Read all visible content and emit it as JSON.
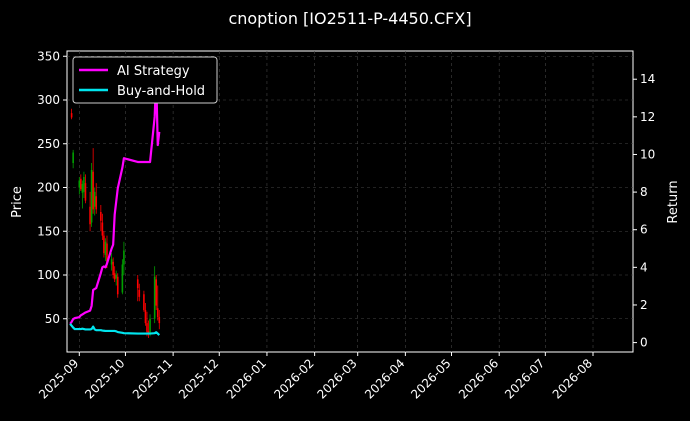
{
  "chart_data": {
    "type": "line",
    "title": "cnoption [IO2511-P-4450.CFX]",
    "xlabel": "",
    "ylabel_left": "Price",
    "ylabel_right": "Return",
    "x_range": [
      "2025-08-24",
      "2026-08-27"
    ],
    "x_ticks": [
      "2025-09",
      "2025-10",
      "2025-11",
      "2025-12",
      "2026-01",
      "2026-02",
      "2026-03",
      "2026-04",
      "2026-05",
      "2026-06",
      "2026-07",
      "2026-08"
    ],
    "y_left_range": [
      12,
      356
    ],
    "y_left_ticks": [
      50,
      100,
      150,
      200,
      250,
      300,
      350
    ],
    "y_right_range": [
      -0.5,
      15.5
    ],
    "y_right_ticks": [
      0,
      2,
      4,
      6,
      8,
      10,
      12,
      14
    ],
    "grid": true,
    "legend_position": "top-left",
    "colors": {
      "background": "#000000",
      "up": "#00a000",
      "down": "#ff0000",
      "strategy": "#ff00ff",
      "buyhold": "#00e5ee",
      "grid": "#444444"
    },
    "candles": [
      {
        "x": "2025-08-27",
        "open": 285,
        "high": 290,
        "low": 278,
        "close": 280
      },
      {
        "x": "2025-08-28",
        "open": 228,
        "high": 243,
        "low": 222,
        "close": 240
      },
      {
        "x": "2025-09-01",
        "open": 200,
        "high": 212,
        "low": 192,
        "close": 208
      },
      {
        "x": "2025-09-02",
        "open": 210,
        "high": 215,
        "low": 196,
        "close": 198
      },
      {
        "x": "2025-09-03",
        "open": 194,
        "high": 208,
        "low": 176,
        "close": 204
      },
      {
        "x": "2025-09-04",
        "open": 195,
        "high": 218,
        "low": 188,
        "close": 212
      },
      {
        "x": "2025-09-05",
        "open": 205,
        "high": 215,
        "low": 182,
        "close": 185
      },
      {
        "x": "2025-09-08",
        "open": 178,
        "high": 195,
        "low": 150,
        "close": 158
      },
      {
        "x": "2025-09-09",
        "open": 160,
        "high": 228,
        "low": 155,
        "close": 220
      },
      {
        "x": "2025-09-10",
        "open": 218,
        "high": 245,
        "low": 170,
        "close": 175
      },
      {
        "x": "2025-09-11",
        "open": 178,
        "high": 200,
        "low": 168,
        "close": 195
      },
      {
        "x": "2025-09-12",
        "open": 190,
        "high": 205,
        "low": 170,
        "close": 175
      },
      {
        "x": "2025-09-15",
        "open": 172,
        "high": 180,
        "low": 150,
        "close": 162
      },
      {
        "x": "2025-09-16",
        "open": 160,
        "high": 170,
        "low": 140,
        "close": 145
      },
      {
        "x": "2025-09-17",
        "open": 145,
        "high": 150,
        "low": 120,
        "close": 125
      },
      {
        "x": "2025-09-18",
        "open": 123,
        "high": 142,
        "low": 116,
        "close": 138
      },
      {
        "x": "2025-09-19",
        "open": 136,
        "high": 145,
        "low": 108,
        "close": 112
      },
      {
        "x": "2025-09-22",
        "open": 112,
        "high": 125,
        "low": 105,
        "close": 118
      },
      {
        "x": "2025-09-23",
        "open": 115,
        "high": 120,
        "low": 96,
        "close": 100
      },
      {
        "x": "2025-09-24",
        "open": 102,
        "high": 110,
        "low": 92,
        "close": 95
      },
      {
        "x": "2025-09-25",
        "open": 96,
        "high": 105,
        "low": 88,
        "close": 100
      },
      {
        "x": "2025-09-26",
        "open": 98,
        "high": 102,
        "low": 74,
        "close": 78
      },
      {
        "x": "2025-09-29",
        "open": 80,
        "high": 118,
        "low": 78,
        "close": 112
      },
      {
        "x": "2025-09-30",
        "open": 112,
        "high": 138,
        "low": 100,
        "close": 128
      },
      {
        "x": "2025-10-09",
        "open": 95,
        "high": 100,
        "low": 70,
        "close": 85
      },
      {
        "x": "2025-10-10",
        "open": 83,
        "high": 90,
        "low": 70,
        "close": 75
      },
      {
        "x": "2025-10-13",
        "open": 78,
        "high": 82,
        "low": 58,
        "close": 60
      },
      {
        "x": "2025-10-14",
        "open": 60,
        "high": 68,
        "low": 42,
        "close": 45
      },
      {
        "x": "2025-10-15",
        "open": 45,
        "high": 58,
        "low": 30,
        "close": 35
      },
      {
        "x": "2025-10-16",
        "open": 36,
        "high": 48,
        "low": 28,
        "close": 32
      },
      {
        "x": "2025-10-17",
        "open": 32,
        "high": 55,
        "low": 30,
        "close": 50
      },
      {
        "x": "2025-10-20",
        "open": 50,
        "high": 110,
        "low": 45,
        "close": 98
      },
      {
        "x": "2025-10-21",
        "open": 95,
        "high": 100,
        "low": 60,
        "close": 65
      },
      {
        "x": "2025-10-22",
        "open": 62,
        "high": 88,
        "low": 48,
        "close": 52
      },
      {
        "x": "2025-10-23",
        "open": 52,
        "high": 60,
        "low": 38,
        "close": 45
      }
    ],
    "series": [
      {
        "name": "AI Strategy",
        "x": [
          "2025-08-26",
          "2025-08-27",
          "2025-08-28",
          "2025-08-29",
          "2025-09-01",
          "2025-09-02",
          "2025-09-03",
          "2025-09-04",
          "2025-09-05",
          "2025-09-08",
          "2025-09-09",
          "2025-09-10",
          "2025-09-11",
          "2025-09-12",
          "2025-09-15",
          "2025-09-16",
          "2025-09-17",
          "2025-09-18",
          "2025-09-19",
          "2025-09-22",
          "2025-09-23",
          "2025-09-24",
          "2025-09-25",
          "2025-09-26",
          "2025-09-29",
          "2025-09-30",
          "2025-10-09",
          "2025-10-10",
          "2025-10-13",
          "2025-10-14",
          "2025-10-15",
          "2025-10-16",
          "2025-10-17",
          "2025-10-20",
          "2025-10-21",
          "2025-10-22",
          "2025-10-23"
        ],
        "values": [
          1.0,
          1.1,
          1.25,
          1.3,
          1.35,
          1.45,
          1.5,
          1.55,
          1.6,
          1.7,
          1.95,
          2.8,
          2.85,
          2.9,
          3.7,
          4.0,
          4.05,
          4.0,
          4.2,
          5.0,
          5.2,
          6.8,
          7.5,
          8.2,
          9.3,
          9.8,
          9.6,
          9.6,
          9.6,
          9.6,
          9.6,
          9.6,
          9.6,
          12.0,
          14.1,
          10.5,
          11.2
        ]
      },
      {
        "name": "Buy-and-Hold",
        "x": [
          "2025-08-26",
          "2025-08-27",
          "2025-08-28",
          "2025-08-29",
          "2025-09-01",
          "2025-09-02",
          "2025-09-03",
          "2025-09-04",
          "2025-09-05",
          "2025-09-08",
          "2025-09-09",
          "2025-09-10",
          "2025-09-11",
          "2025-09-12",
          "2025-09-15",
          "2025-09-16",
          "2025-09-17",
          "2025-09-18",
          "2025-09-19",
          "2025-09-22",
          "2025-09-23",
          "2025-09-24",
          "2025-09-25",
          "2025-09-26",
          "2025-09-29",
          "2025-09-30",
          "2025-10-09",
          "2025-10-10",
          "2025-10-13",
          "2025-10-14",
          "2025-10-15",
          "2025-10-16",
          "2025-10-17",
          "2025-10-20",
          "2025-10-21",
          "2025-10-22",
          "2025-10-23"
        ],
        "values": [
          1.0,
          0.9,
          0.8,
          0.72,
          0.72,
          0.72,
          0.74,
          0.72,
          0.7,
          0.7,
          0.72,
          0.85,
          0.7,
          0.66,
          0.66,
          0.64,
          0.63,
          0.62,
          0.62,
          0.62,
          0.62,
          0.62,
          0.6,
          0.56,
          0.52,
          0.5,
          0.48,
          0.48,
          0.48,
          0.48,
          0.48,
          0.48,
          0.48,
          0.5,
          0.55,
          0.48,
          0.4
        ]
      }
    ]
  }
}
